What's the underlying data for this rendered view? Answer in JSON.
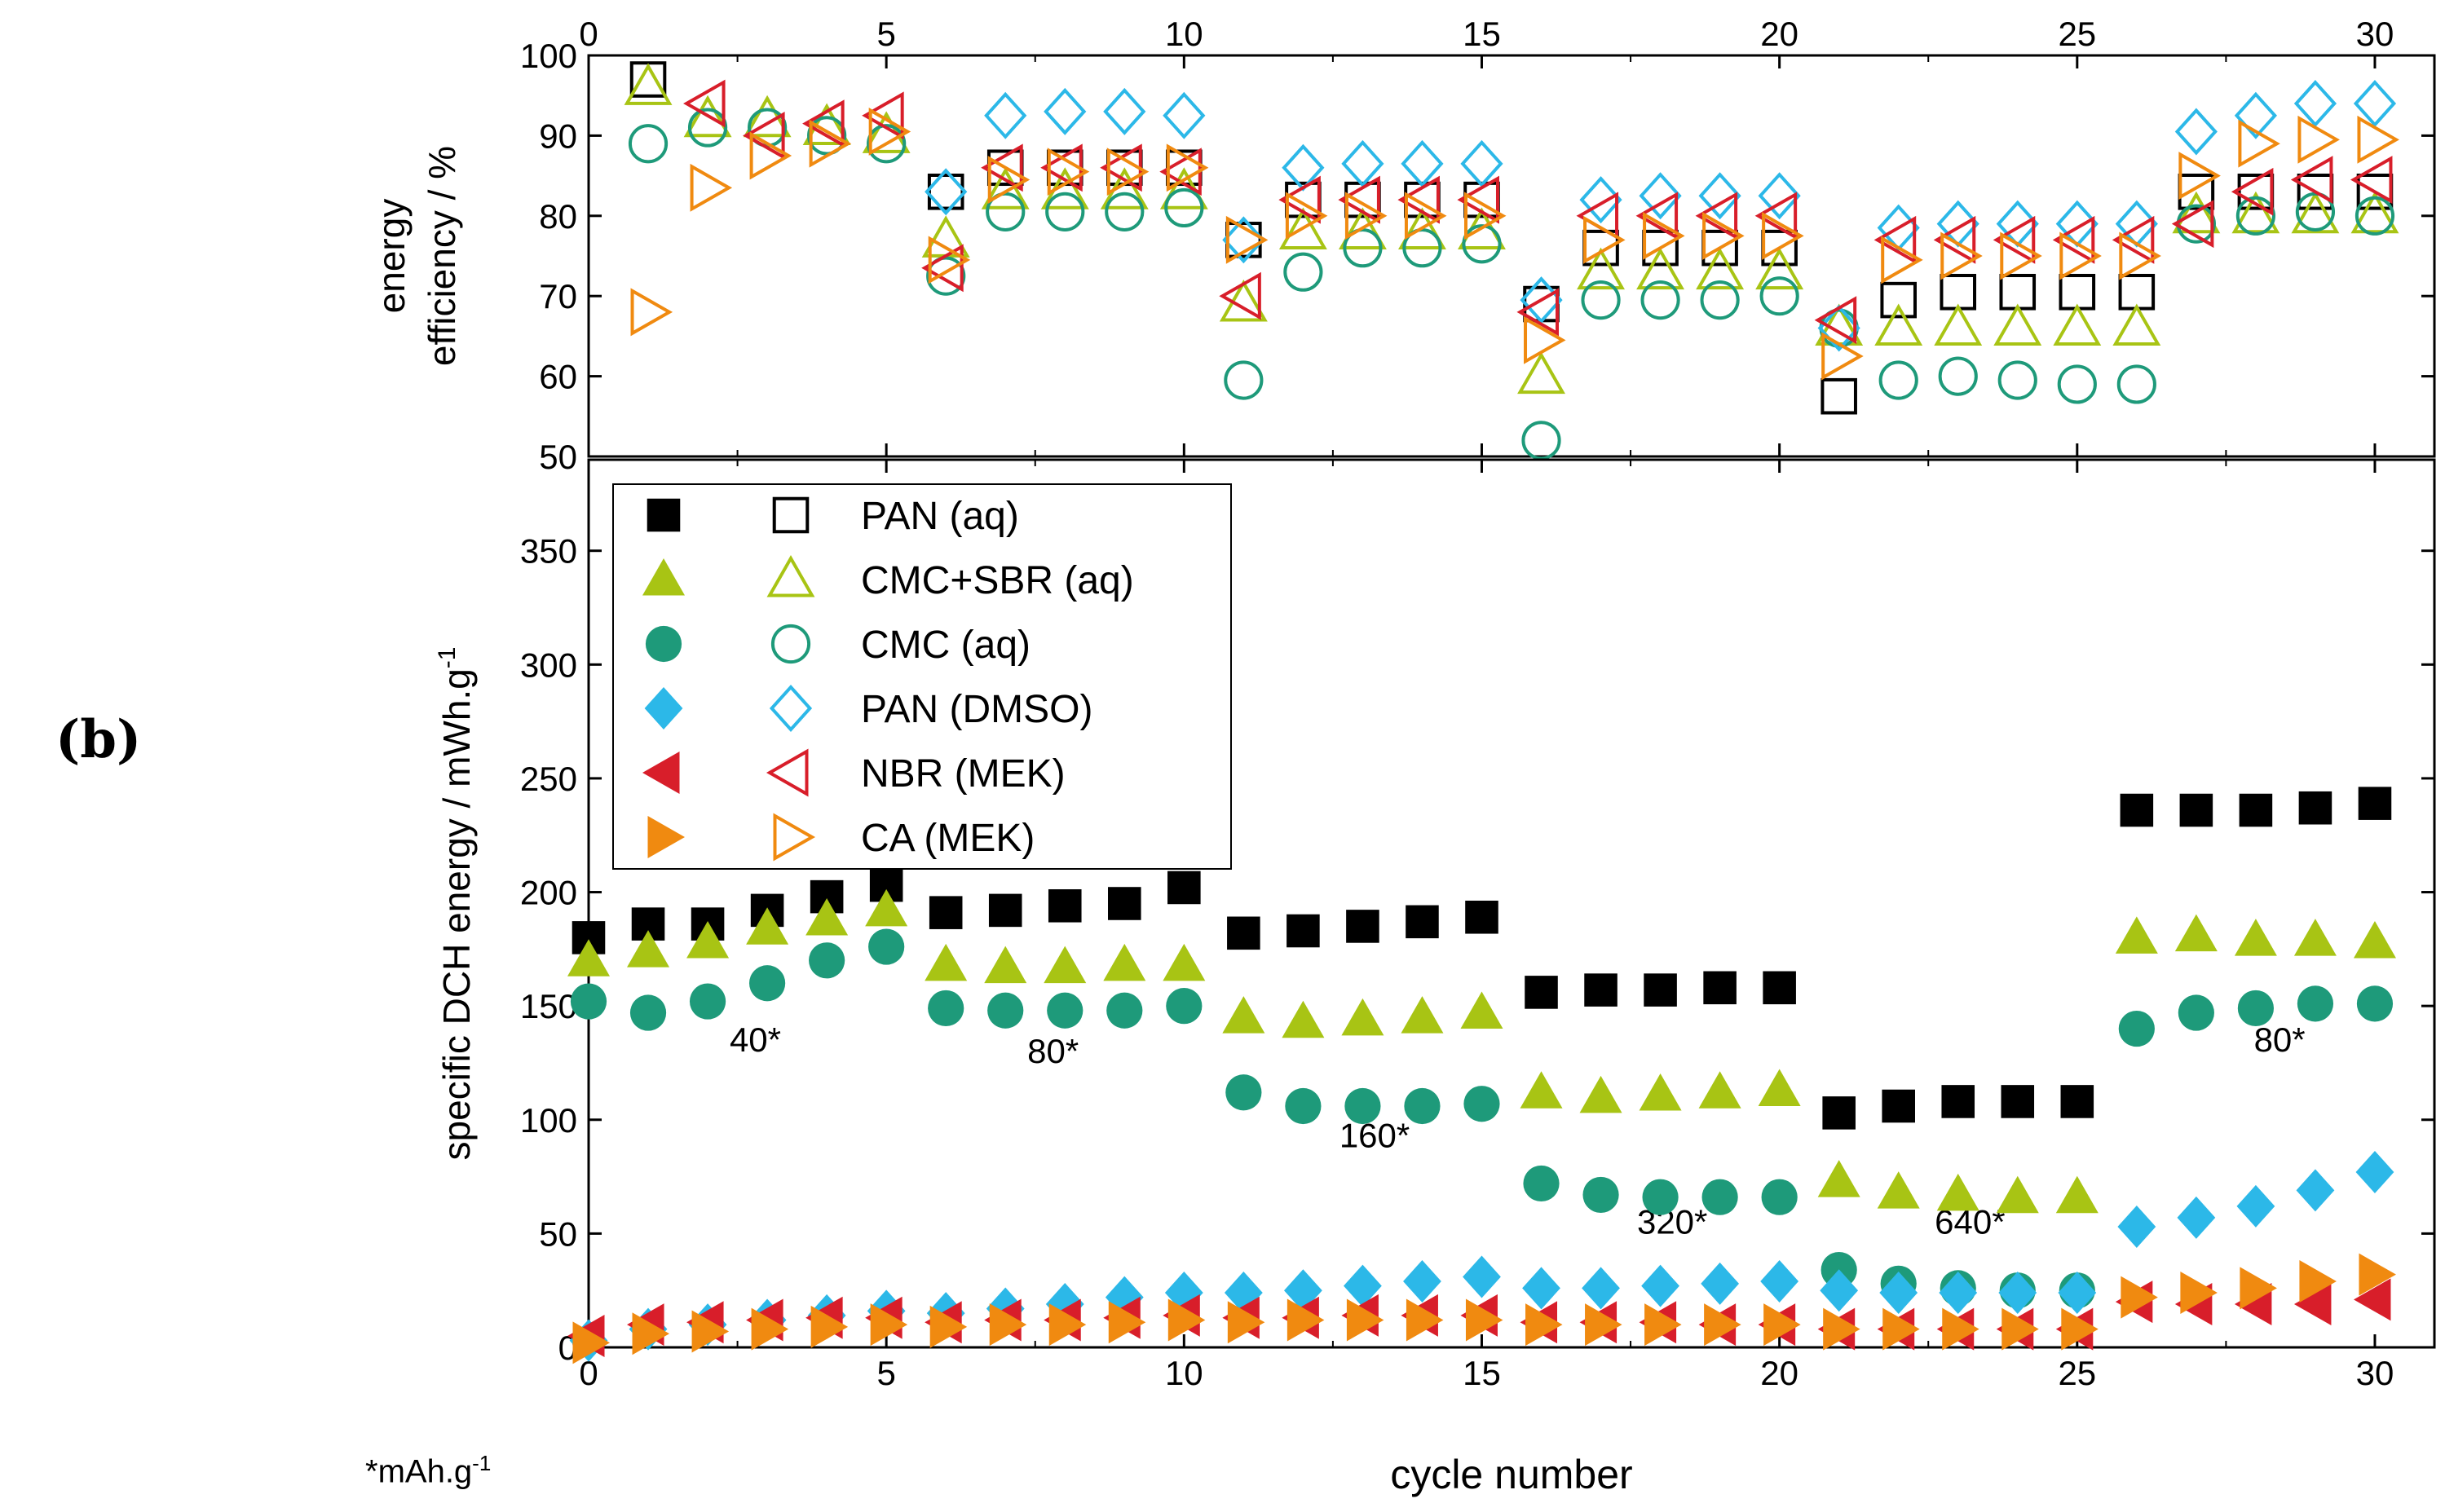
{
  "panel_label": "(b)",
  "footnote": {
    "text": "*mAh.g",
    "superscript": "-1"
  },
  "colors": {
    "PAN (aq)": "#000000",
    "CMC+SBR (aq)": "#a8c414",
    "CMC (aq)": "#1e9a7a",
    "PAN (DMSO)": "#2cb8e8",
    "NBR (MEK)": "#d81e2a",
    "CA (MEK)": "#f08a10"
  },
  "chart_data": [
    {
      "type": "scatter",
      "title": "",
      "xlabel": "",
      "ylabel": "energy efficiency / %",
      "xlim": [
        0,
        31
      ],
      "ylim": [
        50,
        100
      ],
      "xticks": [
        0,
        5,
        10,
        15,
        20,
        25,
        30
      ],
      "yticks": [
        50,
        60,
        70,
        80,
        90,
        100
      ],
      "x_ticks_on_top": true,
      "marker_style": "open",
      "series": [
        {
          "name": "PAN (aq)",
          "marker": "square",
          "x": [
            1,
            6,
            7,
            8,
            9,
            10,
            11,
            12,
            13,
            14,
            15,
            16,
            17,
            18,
            19,
            20,
            21,
            22,
            23,
            24,
            25,
            26,
            27,
            28,
            29,
            30
          ],
          "values": [
            97,
            83,
            86,
            86,
            86,
            86,
            77,
            82,
            82,
            82,
            82,
            69,
            76,
            76,
            76,
            76,
            57.5,
            69.5,
            70.5,
            70.5,
            70.5,
            70.5,
            83,
            83,
            83,
            83
          ]
        },
        {
          "name": "CMC+SBR (aq)",
          "marker": "triangle-up",
          "x": [
            1,
            2,
            3,
            4,
            5,
            6,
            7,
            8,
            9,
            10,
            11,
            12,
            13,
            14,
            15,
            16,
            17,
            18,
            19,
            20,
            21,
            22,
            23,
            24,
            25,
            26,
            27,
            28,
            29,
            30
          ],
          "values": [
            96,
            92,
            92,
            91,
            90,
            77,
            83,
            83,
            83,
            83,
            69,
            78,
            78,
            78,
            78,
            60,
            73,
            73,
            73,
            73,
            66,
            66,
            66,
            66,
            66,
            66,
            80,
            80,
            80,
            80
          ]
        },
        {
          "name": "CMC (aq)",
          "marker": "circle",
          "x": [
            1,
            2,
            3,
            4,
            5,
            6,
            7,
            8,
            9,
            10,
            11,
            12,
            13,
            14,
            15,
            16,
            17,
            18,
            19,
            20,
            21,
            22,
            23,
            24,
            25,
            26,
            27,
            28,
            29,
            30
          ],
          "values": [
            89,
            91,
            91,
            90,
            89,
            72.5,
            80.5,
            80.5,
            80.5,
            81,
            59.5,
            73,
            76,
            76,
            76.5,
            52,
            69.5,
            69.5,
            69.5,
            70,
            66,
            59.5,
            60,
            59.5,
            59,
            59,
            79,
            80,
            80.5,
            80
          ]
        },
        {
          "name": "PAN (DMSO)",
          "marker": "diamond",
          "x": [
            6,
            7,
            8,
            9,
            10,
            11,
            12,
            13,
            14,
            15,
            16,
            17,
            18,
            19,
            20,
            21,
            22,
            23,
            24,
            25,
            26,
            27,
            28,
            29,
            30
          ],
          "values": [
            83,
            92.5,
            93,
            93,
            92.5,
            77,
            86,
            86.5,
            86.5,
            86.5,
            69.5,
            82,
            82.5,
            82.5,
            82.5,
            66,
            78.5,
            79,
            79,
            79,
            79,
            90.5,
            92.5,
            94,
            94
          ]
        },
        {
          "name": "NBR (MEK)",
          "marker": "triangle-left",
          "x": [
            2,
            3,
            4,
            5,
            6,
            7,
            8,
            9,
            10,
            11,
            12,
            13,
            14,
            15,
            16,
            17,
            18,
            19,
            20,
            21,
            22,
            23,
            24,
            25,
            26,
            27,
            28,
            29,
            30
          ],
          "values": [
            94,
            90,
            91.5,
            92.5,
            73.5,
            86,
            86,
            86,
            85.5,
            70,
            82,
            82,
            82,
            82,
            68,
            80,
            80,
            80,
            80,
            67,
            77,
            77,
            77,
            77,
            77,
            79,
            83,
            84.5,
            84.5
          ]
        },
        {
          "name": "CA (MEK)",
          "marker": "triangle-right",
          "x": [
            1,
            2,
            3,
            4,
            5,
            6,
            7,
            8,
            9,
            10,
            11,
            12,
            13,
            14,
            15,
            16,
            17,
            18,
            19,
            20,
            21,
            22,
            23,
            24,
            25,
            26,
            27,
            28,
            29,
            30
          ],
          "values": [
            68,
            83.5,
            87.5,
            89,
            90.5,
            74.5,
            84.5,
            85.5,
            85.5,
            86,
            77,
            80,
            80,
            80,
            80,
            64.5,
            77,
            77.5,
            77.5,
            77.5,
            62.5,
            74.5,
            75,
            75,
            75,
            75,
            85,
            89,
            89.5,
            89.5
          ]
        }
      ]
    },
    {
      "type": "scatter",
      "title": "",
      "xlabel": "cycle number",
      "ylabel": "specific DCH energy / mWh.g",
      "ylabel_superscript": "-1",
      "xlim": [
        0,
        31
      ],
      "ylim": [
        0,
        390
      ],
      "xticks": [
        0,
        5,
        10,
        15,
        20,
        25,
        30
      ],
      "yticks": [
        0,
        50,
        100,
        150,
        200,
        250,
        300,
        350
      ],
      "marker_style": "filled",
      "legend": {
        "position": "top-left",
        "entries": [
          "PAN (aq)",
          "CMC+SBR (aq)",
          "CMC (aq)",
          "PAN (DMSO)",
          "NBR (MEK)",
          "CA (MEK)"
        ]
      },
      "annotations": [
        {
          "text": "40*",
          "x": 2.8,
          "y": 130
        },
        {
          "text": "80*",
          "x": 7.8,
          "y": 125
        },
        {
          "text": "160*",
          "x": 13.2,
          "y": 88
        },
        {
          "text": "320*",
          "x": 18.2,
          "y": 50
        },
        {
          "text": "640*",
          "x": 23.2,
          "y": 50
        },
        {
          "text": "80*",
          "x": 28.4,
          "y": 130
        }
      ],
      "series": [
        {
          "name": "PAN (aq)",
          "marker": "square",
          "x": [
            0,
            1,
            2,
            3,
            4,
            5,
            6,
            7,
            8,
            9,
            10,
            11,
            12,
            13,
            14,
            15,
            16,
            17,
            18,
            19,
            20,
            21,
            22,
            23,
            24,
            25,
            26,
            27,
            28,
            29,
            30
          ],
          "values": [
            180,
            186,
            186,
            192,
            198,
            203,
            191,
            192,
            194,
            195,
            202,
            182,
            183,
            185,
            187,
            189,
            156,
            157,
            157,
            158,
            158,
            103,
            106,
            108,
            108,
            108,
            236,
            236,
            236,
            237,
            239
          ]
        },
        {
          "name": "CMC+SBR (aq)",
          "marker": "triangle-up",
          "x": [
            0,
            1,
            2,
            3,
            4,
            5,
            6,
            7,
            8,
            9,
            10,
            11,
            12,
            13,
            14,
            15,
            16,
            17,
            18,
            19,
            20,
            21,
            22,
            23,
            24,
            25,
            26,
            27,
            28,
            29,
            30
          ],
          "values": [
            170,
            174,
            178,
            184,
            188,
            192,
            168,
            167,
            167,
            168,
            168,
            145,
            143,
            144,
            145,
            147,
            112,
            110,
            111,
            112,
            113,
            73,
            68,
            67,
            66,
            66,
            180,
            181,
            179,
            179,
            178
          ]
        },
        {
          "name": "CMC (aq)",
          "marker": "circle",
          "x": [
            0,
            1,
            2,
            3,
            4,
            5,
            6,
            7,
            8,
            9,
            10,
            11,
            12,
            13,
            14,
            15,
            16,
            17,
            18,
            19,
            20,
            21,
            22,
            23,
            24,
            25,
            26,
            27,
            28,
            29,
            30
          ],
          "values": [
            152,
            147,
            152,
            160,
            170,
            176,
            149,
            148,
            148,
            148,
            150,
            112,
            106,
            106,
            106,
            107,
            72,
            67,
            66,
            66,
            66,
            34,
            28,
            26,
            25,
            25,
            140,
            147,
            149,
            151,
            151
          ]
        },
        {
          "name": "PAN (DMSO)",
          "marker": "diamond",
          "x": [
            0,
            1,
            2,
            3,
            4,
            5,
            6,
            7,
            8,
            9,
            10,
            11,
            12,
            13,
            14,
            15,
            16,
            17,
            18,
            19,
            20,
            21,
            22,
            23,
            24,
            25,
            26,
            27,
            28,
            29,
            30
          ],
          "values": [
            3,
            8,
            10,
            12,
            14,
            16,
            15,
            17,
            19,
            22,
            24,
            24,
            25,
            27,
            29,
            31,
            26,
            26,
            27,
            28,
            29,
            25,
            24,
            24,
            24,
            24,
            53,
            57,
            62,
            69,
            77
          ]
        },
        {
          "name": "NBR (MEK)",
          "marker": "triangle-left",
          "x": [
            0,
            1,
            2,
            3,
            4,
            5,
            6,
            7,
            8,
            9,
            10,
            11,
            12,
            13,
            14,
            15,
            16,
            17,
            18,
            19,
            20,
            21,
            22,
            23,
            24,
            25,
            26,
            27,
            28,
            29,
            30
          ],
          "values": [
            5,
            10,
            11,
            12,
            13,
            13,
            11,
            12,
            12,
            13,
            14,
            13,
            13,
            14,
            14,
            14,
            11,
            11,
            11,
            10,
            10,
            8,
            8,
            8,
            8,
            8,
            20,
            19,
            19,
            19,
            21
          ]
        },
        {
          "name": "CA (MEK)",
          "marker": "triangle-right",
          "x": [
            0,
            1,
            2,
            3,
            4,
            5,
            6,
            7,
            8,
            9,
            10,
            11,
            12,
            13,
            14,
            15,
            16,
            17,
            18,
            19,
            20,
            21,
            22,
            23,
            24,
            25,
            26,
            27,
            28,
            29,
            30
          ],
          "values": [
            2,
            6,
            7,
            8,
            9,
            10,
            9,
            10,
            10,
            11,
            12,
            11,
            12,
            12,
            12,
            12,
            10,
            10,
            10,
            10,
            10,
            8,
            8,
            8,
            8,
            8,
            22,
            24,
            26,
            29,
            32
          ]
        }
      ]
    }
  ]
}
